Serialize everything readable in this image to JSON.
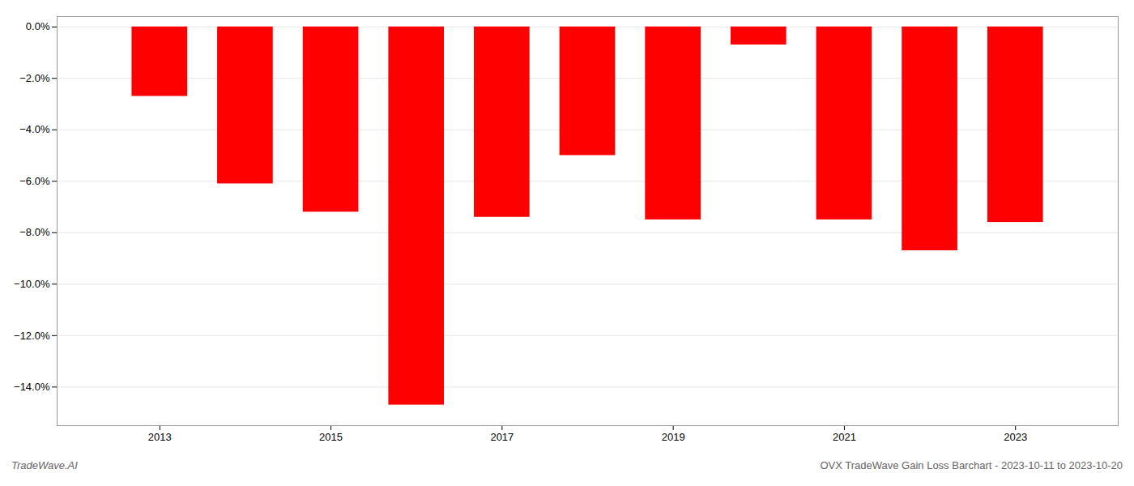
{
  "chart_data": {
    "type": "bar",
    "x": [
      2013,
      2014,
      2015,
      2016,
      2017,
      2018,
      2019,
      2020,
      2021,
      2022,
      2023
    ],
    "values": [
      -0.027,
      -0.061,
      -0.072,
      -0.147,
      -0.074,
      -0.05,
      -0.075,
      -0.007,
      -0.075,
      -0.087,
      -0.076
    ],
    "color": "#ff0000",
    "xlim": [
      2011.8,
      2024.2
    ],
    "xticks": [
      2013,
      2015,
      2017,
      2019,
      2021,
      2023
    ],
    "ylim": [
      -0.155,
      0.004
    ],
    "yticks": [
      {
        "value": 0.0,
        "label": "0.0%"
      },
      {
        "value": -0.02,
        "label": "−2.0%"
      },
      {
        "value": -0.04,
        "label": "−4.0%"
      },
      {
        "value": -0.06,
        "label": "−6.0%"
      },
      {
        "value": -0.08,
        "label": "−8.0%"
      },
      {
        "value": -0.1,
        "label": "−10.0%"
      },
      {
        "value": -0.12,
        "label": "−12.0%"
      },
      {
        "value": -0.14,
        "label": "−14.0%"
      }
    ],
    "grid": true,
    "annotations": [
      "TradeWave.AI",
      "OVX TradeWave Gain Loss Barchart - 2023-10-11 to 2023-10-20"
    ]
  }
}
